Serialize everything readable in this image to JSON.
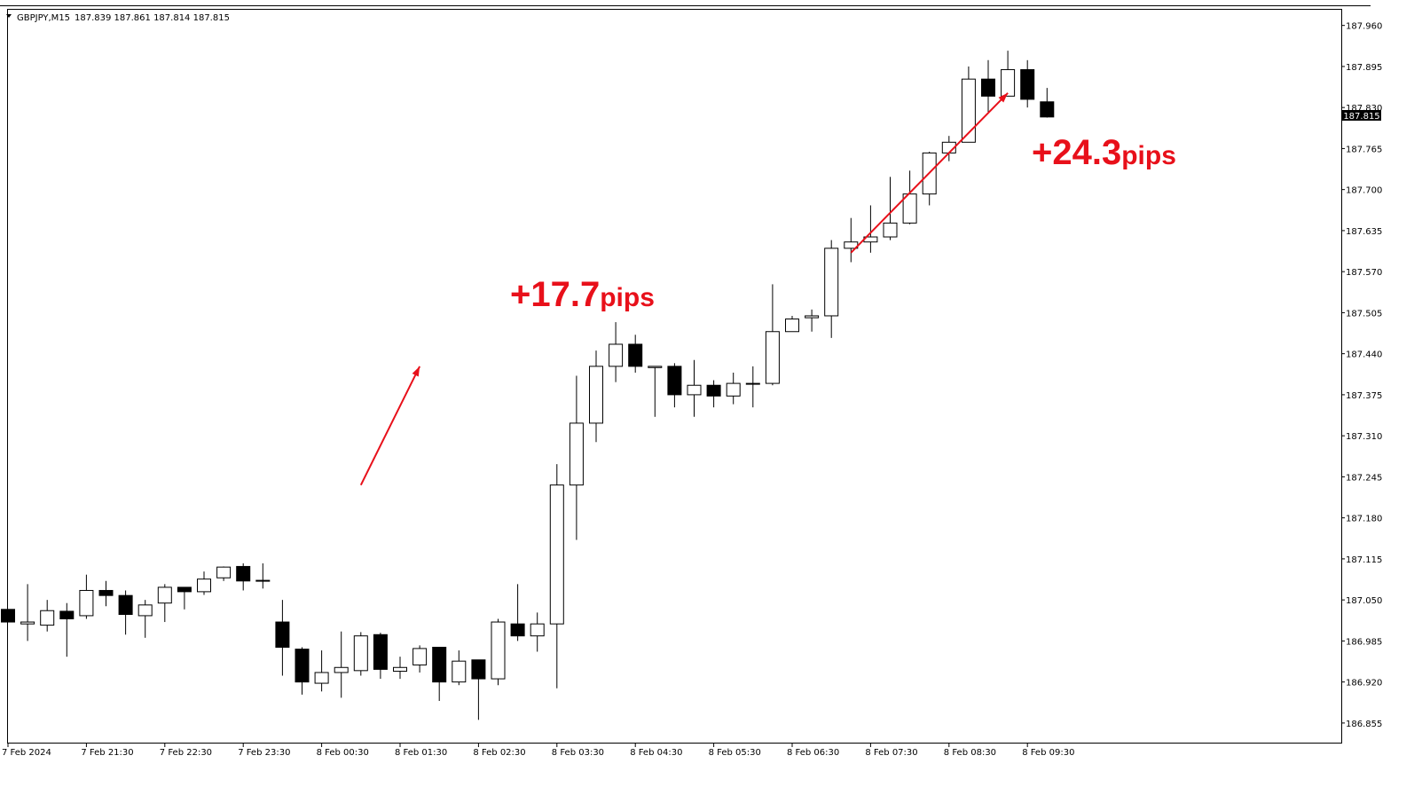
{
  "header": {
    "symbol_timeframe": "GBPJPY,M15",
    "ohlc": "187.839 187.861 187.814 187.815"
  },
  "price_label": "187.815",
  "colors": {
    "background": "#ffffff",
    "candle_outline": "#000000",
    "bull_fill": "#ffffff",
    "bear_fill": "#000000",
    "annotation": "#e8101a"
  },
  "annotations": [
    {
      "big": "+17.7",
      "small": "pips",
      "arrow_from": [
        18,
        187.232
      ],
      "arrow_to": [
        21,
        187.42
      ]
    },
    {
      "big": "+24.3",
      "small": "pips",
      "arrow_from": [
        43,
        187.6
      ],
      "arrow_to": [
        51,
        187.853
      ]
    }
  ],
  "chart_data": {
    "type": "candlestick",
    "symbol": "GBPJPY",
    "timeframe": "M15",
    "y_ticks": [
      "187.960",
      "187.895",
      "187.830",
      "187.765",
      "187.700",
      "187.635",
      "187.570",
      "187.505",
      "187.440",
      "187.375",
      "187.310",
      "187.245",
      "187.180",
      "187.115",
      "187.050",
      "186.985",
      "186.920",
      "186.855"
    ],
    "ylim": [
      186.845,
      187.975
    ],
    "x_labels": [
      {
        "index": 0,
        "label": "7 Feb 2024"
      },
      {
        "index": 4,
        "label": "7 Feb 21:30"
      },
      {
        "index": 8,
        "label": "7 Feb 22:30"
      },
      {
        "index": 12,
        "label": "7 Feb 23:30"
      },
      {
        "index": 16,
        "label": "8 Feb 00:30"
      },
      {
        "index": 20,
        "label": "8 Feb 01:30"
      },
      {
        "index": 24,
        "label": "8 Feb 02:30"
      },
      {
        "index": 28,
        "label": "8 Feb 03:30"
      },
      {
        "index": 32,
        "label": "8 Feb 04:30"
      },
      {
        "index": 36,
        "label": "8 Feb 05:30"
      },
      {
        "index": 40,
        "label": "8 Feb 06:30"
      },
      {
        "index": 44,
        "label": "8 Feb 07:30"
      },
      {
        "index": 48,
        "label": "8 Feb 08:30"
      },
      {
        "index": 52,
        "label": "8 Feb 09:30"
      }
    ],
    "candles": [
      {
        "o": 187.035,
        "h": 187.035,
        "l": 187.015,
        "c": 187.015
      },
      {
        "o": 187.012,
        "h": 187.075,
        "l": 186.985,
        "c": 187.015
      },
      {
        "o": 187.01,
        "h": 187.05,
        "l": 187.0,
        "c": 187.033
      },
      {
        "o": 187.032,
        "h": 187.045,
        "l": 186.96,
        "c": 187.02
      },
      {
        "o": 187.025,
        "h": 187.09,
        "l": 187.02,
        "c": 187.065
      },
      {
        "o": 187.065,
        "h": 187.08,
        "l": 187.04,
        "c": 187.057
      },
      {
        "o": 187.057,
        "h": 187.065,
        "l": 186.995,
        "c": 187.027
      },
      {
        "o": 187.025,
        "h": 187.05,
        "l": 186.99,
        "c": 187.042
      },
      {
        "o": 187.045,
        "h": 187.075,
        "l": 187.015,
        "c": 187.07
      },
      {
        "o": 187.07,
        "h": 187.07,
        "l": 187.035,
        "c": 187.063
      },
      {
        "o": 187.063,
        "h": 187.095,
        "l": 187.058,
        "c": 187.083
      },
      {
        "o": 187.085,
        "h": 187.103,
        "l": 187.08,
        "c": 187.102
      },
      {
        "o": 187.103,
        "h": 187.108,
        "l": 187.065,
        "c": 187.08
      },
      {
        "o": 187.081,
        "h": 187.108,
        "l": 187.068,
        "c": 187.081
      },
      {
        "o": 187.015,
        "h": 187.05,
        "l": 186.93,
        "c": 186.975
      },
      {
        "o": 186.972,
        "h": 186.975,
        "l": 186.9,
        "c": 186.92
      },
      {
        "o": 186.918,
        "h": 186.97,
        "l": 186.905,
        "c": 186.935
      },
      {
        "o": 186.935,
        "h": 187.0,
        "l": 186.895,
        "c": 186.943
      },
      {
        "o": 186.938,
        "h": 186.999,
        "l": 186.93,
        "c": 186.993
      },
      {
        "o": 186.995,
        "h": 186.998,
        "l": 186.925,
        "c": 186.94
      },
      {
        "o": 186.937,
        "h": 186.96,
        "l": 186.925,
        "c": 186.943
      },
      {
        "o": 186.947,
        "h": 186.978,
        "l": 186.935,
        "c": 186.973
      },
      {
        "o": 186.975,
        "h": 186.97,
        "l": 186.89,
        "c": 186.92
      },
      {
        "o": 186.92,
        "h": 186.97,
        "l": 186.915,
        "c": 186.953
      },
      {
        "o": 186.955,
        "h": 186.955,
        "l": 186.86,
        "c": 186.925
      },
      {
        "o": 186.925,
        "h": 187.02,
        "l": 186.915,
        "c": 187.015
      },
      {
        "o": 187.012,
        "h": 187.075,
        "l": 186.985,
        "c": 186.993
      },
      {
        "o": 186.993,
        "h": 187.03,
        "l": 186.968,
        "c": 187.012
      },
      {
        "o": 187.012,
        "h": 187.265,
        "l": 186.91,
        "c": 187.232
      },
      {
        "o": 187.232,
        "h": 187.405,
        "l": 187.145,
        "c": 187.33
      },
      {
        "o": 187.33,
        "h": 187.445,
        "l": 187.3,
        "c": 187.42
      },
      {
        "o": 187.42,
        "h": 187.49,
        "l": 187.395,
        "c": 187.455
      },
      {
        "o": 187.455,
        "h": 187.47,
        "l": 187.41,
        "c": 187.42
      },
      {
        "o": 187.418,
        "h": 187.42,
        "l": 187.34,
        "c": 187.42
      },
      {
        "o": 187.42,
        "h": 187.425,
        "l": 187.355,
        "c": 187.375
      },
      {
        "o": 187.375,
        "h": 187.43,
        "l": 187.34,
        "c": 187.39
      },
      {
        "o": 187.39,
        "h": 187.398,
        "l": 187.355,
        "c": 187.373
      },
      {
        "o": 187.373,
        "h": 187.41,
        "l": 187.36,
        "c": 187.393
      },
      {
        "o": 187.393,
        "h": 187.42,
        "l": 187.355,
        "c": 187.393
      },
      {
        "o": 187.393,
        "h": 187.55,
        "l": 187.39,
        "c": 187.475
      },
      {
        "o": 187.475,
        "h": 187.5,
        "l": 187.475,
        "c": 187.495
      },
      {
        "o": 187.497,
        "h": 187.51,
        "l": 187.475,
        "c": 187.5
      },
      {
        "o": 187.5,
        "h": 187.62,
        "l": 187.465,
        "c": 187.607
      },
      {
        "o": 187.607,
        "h": 187.655,
        "l": 187.585,
        "c": 187.617
      },
      {
        "o": 187.617,
        "h": 187.675,
        "l": 187.6,
        "c": 187.625
      },
      {
        "o": 187.625,
        "h": 187.72,
        "l": 187.62,
        "c": 187.647
      },
      {
        "o": 187.647,
        "h": 187.73,
        "l": 187.645,
        "c": 187.693
      },
      {
        "o": 187.693,
        "h": 187.76,
        "l": 187.675,
        "c": 187.758
      },
      {
        "o": 187.758,
        "h": 187.785,
        "l": 187.745,
        "c": 187.775
      },
      {
        "o": 187.775,
        "h": 187.895,
        "l": 187.775,
        "c": 187.875
      },
      {
        "o": 187.875,
        "h": 187.905,
        "l": 187.823,
        "c": 187.848
      },
      {
        "o": 187.848,
        "h": 187.92,
        "l": 187.848,
        "c": 187.89
      },
      {
        "o": 187.89,
        "h": 187.905,
        "l": 187.83,
        "c": 187.843
      },
      {
        "o": 187.839,
        "h": 187.861,
        "l": 187.814,
        "c": 187.815
      }
    ]
  }
}
